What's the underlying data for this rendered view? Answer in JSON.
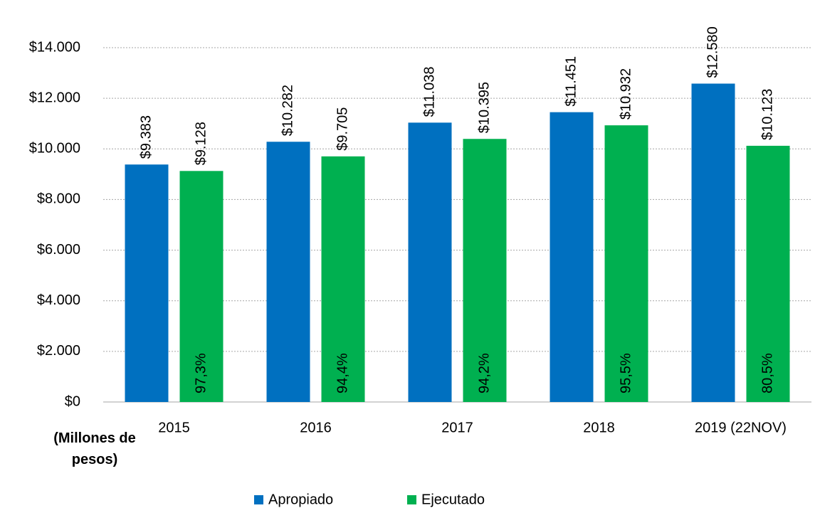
{
  "chart_data": {
    "type": "bar",
    "categories": [
      "2015",
      "2016",
      "2017",
      "2018",
      "2019 (22NOV)"
    ],
    "series": [
      {
        "name": "Apropiado",
        "color": "#0070c0",
        "values": [
          9383,
          10282,
          11038,
          11451,
          12580
        ],
        "value_labels": [
          "$9.383",
          "$10.282",
          "$11.038",
          "$11.451",
          "$12.580"
        ]
      },
      {
        "name": "Ejecutado",
        "color": "#00b050",
        "values": [
          9128,
          9705,
          10395,
          10932,
          10123
        ],
        "value_labels": [
          "$9.128",
          "$9.705",
          "$10.395",
          "$10.932",
          "$10.123"
        ]
      }
    ],
    "execution_rate": {
      "values": [
        97.3,
        94.4,
        94.2,
        95.5,
        80.5
      ],
      "value_labels": [
        "97,3%",
        "94,4%",
        "94,2%",
        "95,5%",
        "80,5%"
      ]
    },
    "ylabel": "(Millones de pesos)",
    "ylim": [
      0,
      14000
    ],
    "yticks": [
      {
        "value": 0,
        "label": "$0"
      },
      {
        "value": 2000,
        "label": "$2.000"
      },
      {
        "value": 4000,
        "label": "$4.000"
      },
      {
        "value": 6000,
        "label": "$6.000"
      },
      {
        "value": 8000,
        "label": "$8.000"
      },
      {
        "value": 10000,
        "label": "$10.000"
      },
      {
        "value": 12000,
        "label": "$12.000"
      },
      {
        "value": 14000,
        "label": "$14.000"
      }
    ],
    "grid": true,
    "legend": "bottom"
  }
}
